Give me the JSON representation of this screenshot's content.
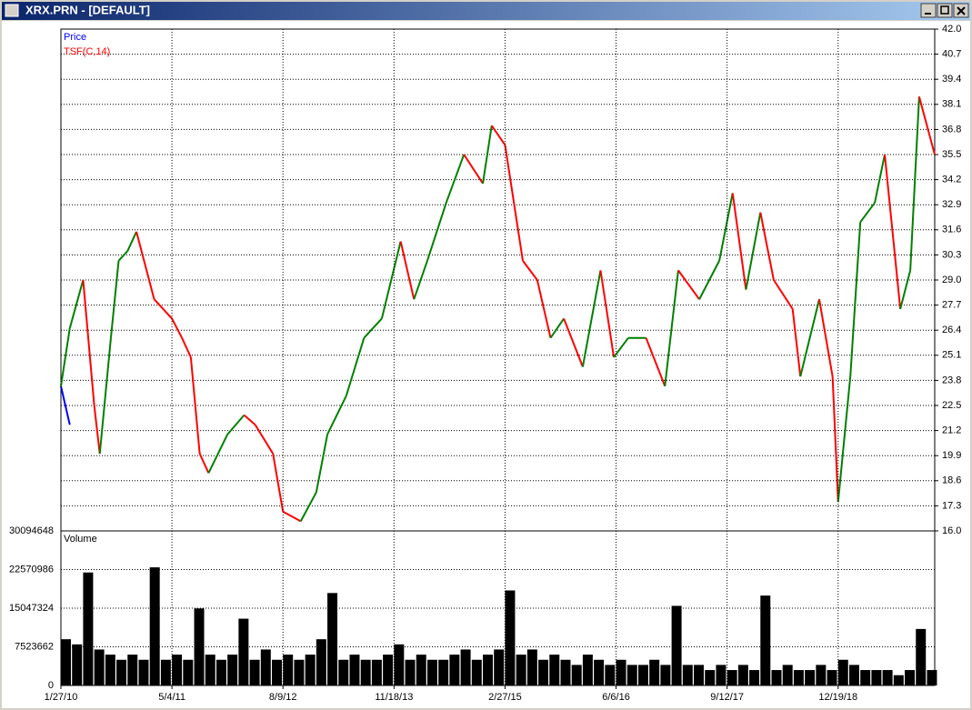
{
  "window": {
    "title": "XRX.PRN  -  [DEFAULT]"
  },
  "chart_data": [
    {
      "type": "line",
      "x": [
        0,
        8,
        20,
        30,
        35,
        45,
        52,
        60,
        68,
        84,
        100,
        109,
        117,
        125,
        133,
        150,
        165,
        175,
        191,
        200,
        216,
        230,
        240,
        257,
        273,
        289,
        306,
        318,
        330,
        347,
        363,
        380,
        388,
        400,
        408,
        416,
        429,
        441,
        453,
        470,
        486,
        498,
        511,
        527,
        544,
        556,
        575,
        593,
        605,
        617,
        630,
        642,
        659,
        666,
        683,
        695,
        700,
        711,
        720,
        733,
        742,
        756,
        765,
        773,
        787
      ],
      "xlim": [
        0,
        787
      ],
      "ylim": [
        16,
        42
      ],
      "yticks": [
        {
          "value": 16,
          "label": "16.0"
        },
        17.3,
        18.6,
        19.9,
        21.2,
        22.5,
        23.8,
        25.1,
        26.4,
        27.7,
        {
          "value": 29,
          "label": "29.0"
        },
        30.3,
        31.6,
        32.9,
        34.2,
        35.5,
        36.8,
        38.1,
        39.4,
        40.7,
        {
          "value": 42,
          "label": "42.0"
        }
      ],
      "grid": true,
      "series": [
        {
          "name": "Price",
          "color": "#0000ff",
          "values": [
            23.5,
            21.5,
            null,
            null,
            null,
            null,
            null,
            null,
            null,
            null,
            null,
            null,
            null,
            null,
            null,
            null,
            null,
            null,
            null,
            null,
            null,
            null,
            null,
            null,
            null,
            null,
            null,
            null,
            null,
            null,
            null,
            null,
            null,
            null,
            null,
            null,
            null,
            null,
            null,
            null,
            null,
            null,
            null,
            null,
            null,
            null,
            null,
            null,
            null,
            null,
            null,
            null,
            null,
            null,
            null,
            null,
            null,
            null,
            null,
            null,
            null,
            null,
            null,
            null,
            null
          ]
        },
        {
          "name": "TSF(C,14)",
          "color": "#ff0000",
          "up_color": "#008000",
          "values": [
            23.5,
            26.5,
            29,
            22.5,
            20,
            26,
            30,
            30.5,
            31.5,
            28,
            27,
            26,
            25,
            20,
            19,
            21,
            22,
            21.5,
            20,
            17,
            16.5,
            18,
            21,
            23,
            26,
            27,
            31,
            28,
            30,
            33,
            35.5,
            34,
            37,
            36,
            33,
            30,
            29,
            26,
            27,
            24.5,
            29.5,
            25,
            26,
            26,
            23.5,
            29.5,
            28,
            30,
            33.5,
            28.5,
            32.5,
            29,
            27.5,
            24,
            28,
            24,
            17.5,
            24,
            32,
            33,
            35.5,
            27.5,
            29.5,
            38.5,
            35.5
          ]
        }
      ]
    },
    {
      "type": "bar",
      "series": [
        {
          "name": "Volume",
          "color": "#000000",
          "values": [
            9000000,
            8000000,
            22000000,
            7000000,
            6000000,
            5000000,
            6000000,
            5000000,
            23000000,
            5000000,
            6000000,
            5000000,
            15000000,
            6000000,
            5000000,
            6000000,
            13000000,
            5000000,
            7000000,
            5000000,
            6000000,
            5000000,
            6000000,
            9000000,
            18000000,
            5000000,
            6000000,
            5000000,
            5000000,
            6000000,
            8000000,
            5000000,
            6000000,
            5000000,
            5000000,
            6000000,
            7000000,
            5000000,
            6000000,
            7000000,
            18500000,
            6000000,
            7000000,
            5000000,
            6000000,
            5000000,
            4000000,
            6000000,
            5000000,
            4000000,
            5000000,
            4000000,
            4000000,
            5000000,
            4000000,
            15500000,
            4000000,
            4000000,
            3000000,
            4000000,
            3000000,
            4000000,
            3000000,
            17500000,
            3000000,
            4000000,
            3000000,
            3000000,
            4000000,
            3000000,
            5000000,
            4000000,
            3000000,
            3000000,
            3000000,
            2000000,
            3000000,
            11000000,
            3000000
          ]
        }
      ],
      "x": [
        0,
        10,
        20,
        30,
        40,
        50,
        60,
        70,
        80,
        90,
        100,
        110,
        120,
        130,
        140,
        150,
        160,
        170,
        180,
        190,
        200,
        210,
        220,
        230,
        240,
        250,
        260,
        270,
        280,
        290,
        300,
        310,
        320,
        330,
        340,
        350,
        360,
        370,
        380,
        390,
        400,
        410,
        420,
        430,
        440,
        450,
        460,
        470,
        480,
        490,
        500,
        510,
        520,
        530,
        540,
        550,
        560,
        570,
        580,
        590,
        600,
        610,
        620,
        630,
        640,
        650,
        660,
        670,
        680,
        690,
        700,
        710,
        720,
        730,
        740,
        750,
        760,
        770,
        780
      ],
      "xlim": [
        0,
        787
      ],
      "ylim": [
        0,
        30094648
      ],
      "yticks": [
        0,
        7523662,
        15047324,
        22570986,
        30094648
      ],
      "grid": true,
      "xticks": [
        {
          "value": 0,
          "label": "1/27/10"
        },
        {
          "value": 100,
          "label": "5/4/11"
        },
        {
          "value": 200,
          "label": "8/9/12"
        },
        {
          "value": 300,
          "label": "11/18/13"
        },
        {
          "value": 400,
          "label": "2/27/15"
        },
        {
          "value": 500,
          "label": "6/6/16"
        },
        {
          "value": 600,
          "label": "9/12/17"
        },
        {
          "value": 700,
          "label": "12/19/18"
        }
      ]
    }
  ]
}
